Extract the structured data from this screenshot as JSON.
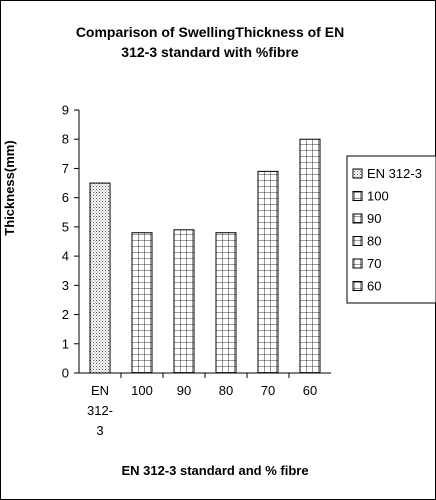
{
  "chart_data": {
    "type": "bar",
    "title": "Comparison of SwellingThickness of EN\n312-3 standard with %fibre",
    "xlabel": "EN 312-3 standard and % fibre",
    "ylabel": "Thickness(mm)",
    "ylim": [
      0,
      9
    ],
    "yticks": [
      "0",
      "1",
      "2",
      "3",
      "4",
      "5",
      "6",
      "7",
      "8",
      "9"
    ],
    "categories": [
      "EN 312-3",
      "100",
      "90",
      "80",
      "70",
      "60"
    ],
    "category_tick_lines": [
      [
        "EN",
        "312-",
        "3"
      ],
      [
        "100"
      ],
      [
        "90"
      ],
      [
        "80"
      ],
      [
        "70"
      ],
      [
        "60"
      ]
    ],
    "values": [
      6.5,
      4.8,
      4.9,
      4.8,
      6.9,
      8.0
    ],
    "patterns": [
      "dotted",
      "grid",
      "grid",
      "grid",
      "grid",
      "grid"
    ],
    "grid": false,
    "legend": {
      "placement": "right",
      "entries": [
        "EN 312-3",
        "100",
        "90",
        "80",
        "70",
        "60"
      ]
    }
  }
}
